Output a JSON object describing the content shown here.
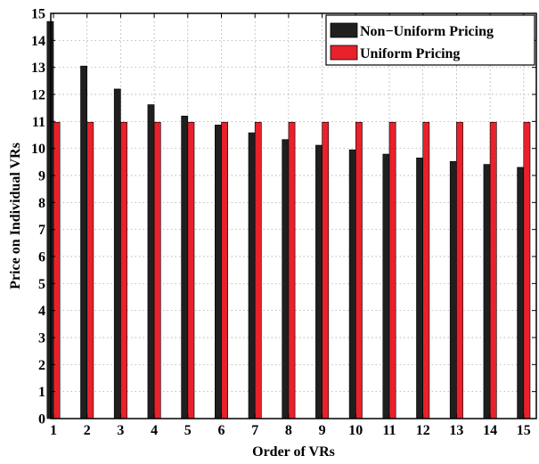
{
  "chart_data": {
    "type": "bar",
    "xlabel": "Order of VRs",
    "ylabel": "Price on Individual VRs",
    "categories": [
      "1",
      "2",
      "3",
      "4",
      "5",
      "6",
      "7",
      "8",
      "9",
      "10",
      "11",
      "12",
      "13",
      "14",
      "15"
    ],
    "ylim": [
      0,
      15
    ],
    "yticks": [
      "0",
      "1",
      "2",
      "3",
      "4",
      "5",
      "6",
      "7",
      "8",
      "9",
      "10",
      "11",
      "12",
      "13",
      "14",
      "15"
    ],
    "grid": true,
    "legend_position": "top-right",
    "series": [
      {
        "name": "Non−Uniform Pricing",
        "color": "#1f1f1f",
        "values": [
          14.7,
          13.05,
          12.2,
          11.62,
          11.2,
          10.87,
          10.58,
          10.33,
          10.12,
          9.95,
          9.79,
          9.65,
          9.52,
          9.41,
          9.3
        ]
      },
      {
        "name": "Uniform Pricing",
        "color": "#e8212b",
        "values": [
          10.97,
          10.97,
          10.97,
          10.97,
          10.97,
          10.97,
          10.97,
          10.97,
          10.97,
          10.97,
          10.97,
          10.97,
          10.97,
          10.97,
          10.97
        ]
      }
    ]
  }
}
